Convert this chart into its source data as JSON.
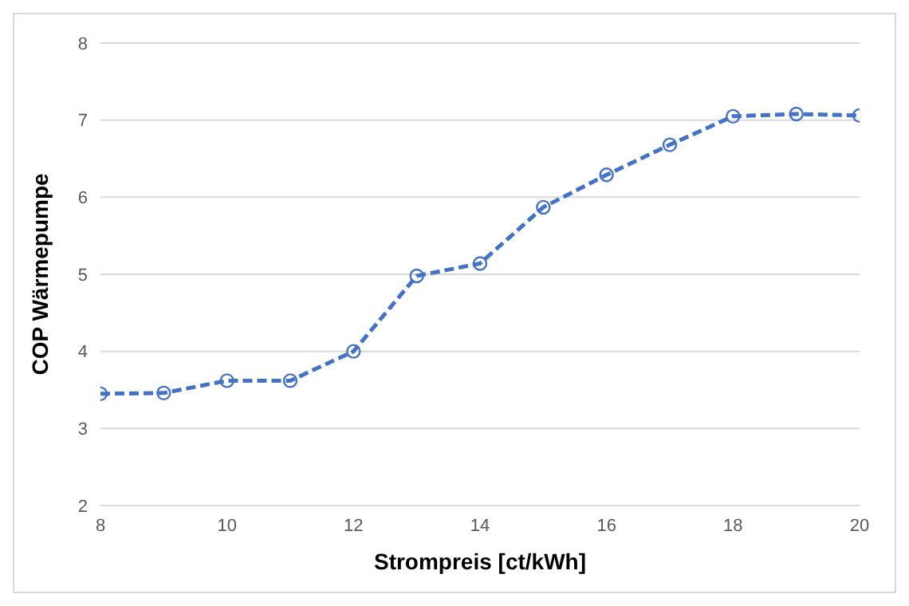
{
  "chart_data": {
    "type": "line",
    "xlabel": "Strompreis [ct/kWh]",
    "ylabel": "COP Wärmepumpe",
    "x": [
      8,
      9,
      10,
      11,
      12,
      13,
      14,
      15,
      16,
      17,
      18,
      19,
      20
    ],
    "series": [
      {
        "color": "#4472c4",
        "values": [
          3.45,
          3.46,
          3.62,
          3.62,
          4.0,
          4.98,
          5.14,
          5.87,
          6.29,
          6.68,
          7.05,
          7.08,
          7.06
        ]
      }
    ],
    "xlim": [
      8,
      20
    ],
    "xticks": [
      8,
      10,
      12,
      14,
      16,
      18,
      20
    ],
    "ylim": [
      2,
      8
    ],
    "yticks": [
      2,
      3,
      4,
      5,
      6,
      7,
      8
    ],
    "grid": "y",
    "marker": "circle",
    "line_style": "dashed",
    "legend": false
  }
}
